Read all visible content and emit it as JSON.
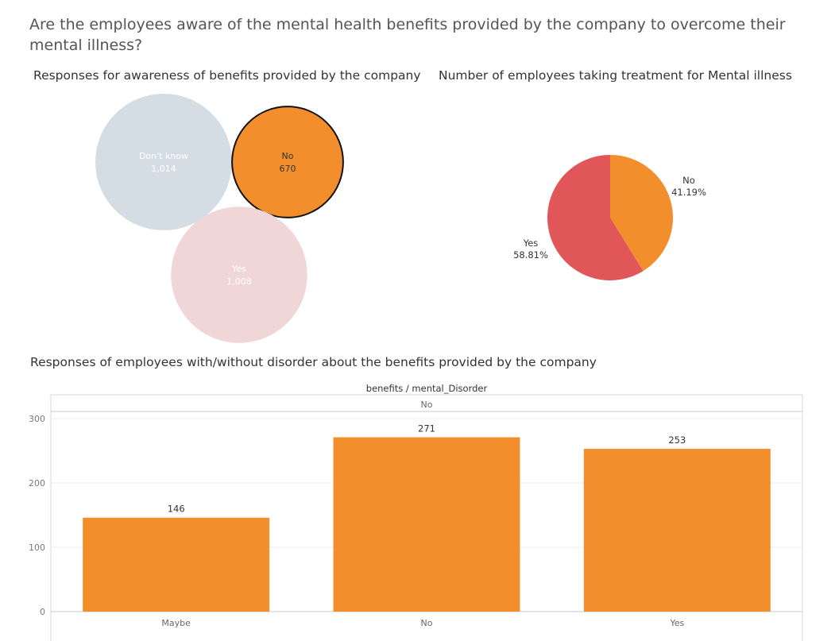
{
  "page": {
    "title": "Are the employees aware of the  mental health benefits provided by the company to overcome their mental illness?"
  },
  "chart_data": [
    {
      "type": "bubble",
      "title": "Responses for awareness of benefits provided by the company",
      "categories": [
        "Don't know",
        "No",
        "Yes"
      ],
      "values": [
        1014,
        670,
        1008
      ],
      "value_labels": [
        "1,014",
        "670",
        "1,008"
      ],
      "highlighted": "No",
      "colors": {
        "Don't know": "#d5dde4",
        "No": "#f28e2b",
        "Yes": "#f0d6d7"
      }
    },
    {
      "type": "pie",
      "title": "Number of employees taking treatment for Mental illness",
      "categories": [
        "No",
        "Yes"
      ],
      "values": [
        41.19,
        58.81
      ],
      "value_labels": [
        "41.19%",
        "58.81%"
      ],
      "colors": {
        "No": "#f28e2b",
        "Yes": "#e15759"
      }
    },
    {
      "type": "bar",
      "title": "Responses of employees with/without disorder about the benefits provided by the company",
      "header": "benefits / mental_Disorder",
      "panel": "No",
      "categories": [
        "Maybe",
        "No",
        "Yes"
      ],
      "values": [
        146,
        271,
        253
      ],
      "ylim": [
        0,
        300
      ],
      "yticks": [
        0,
        100,
        200,
        300
      ],
      "bar_color": "#f28e2b",
      "grid": true
    }
  ]
}
